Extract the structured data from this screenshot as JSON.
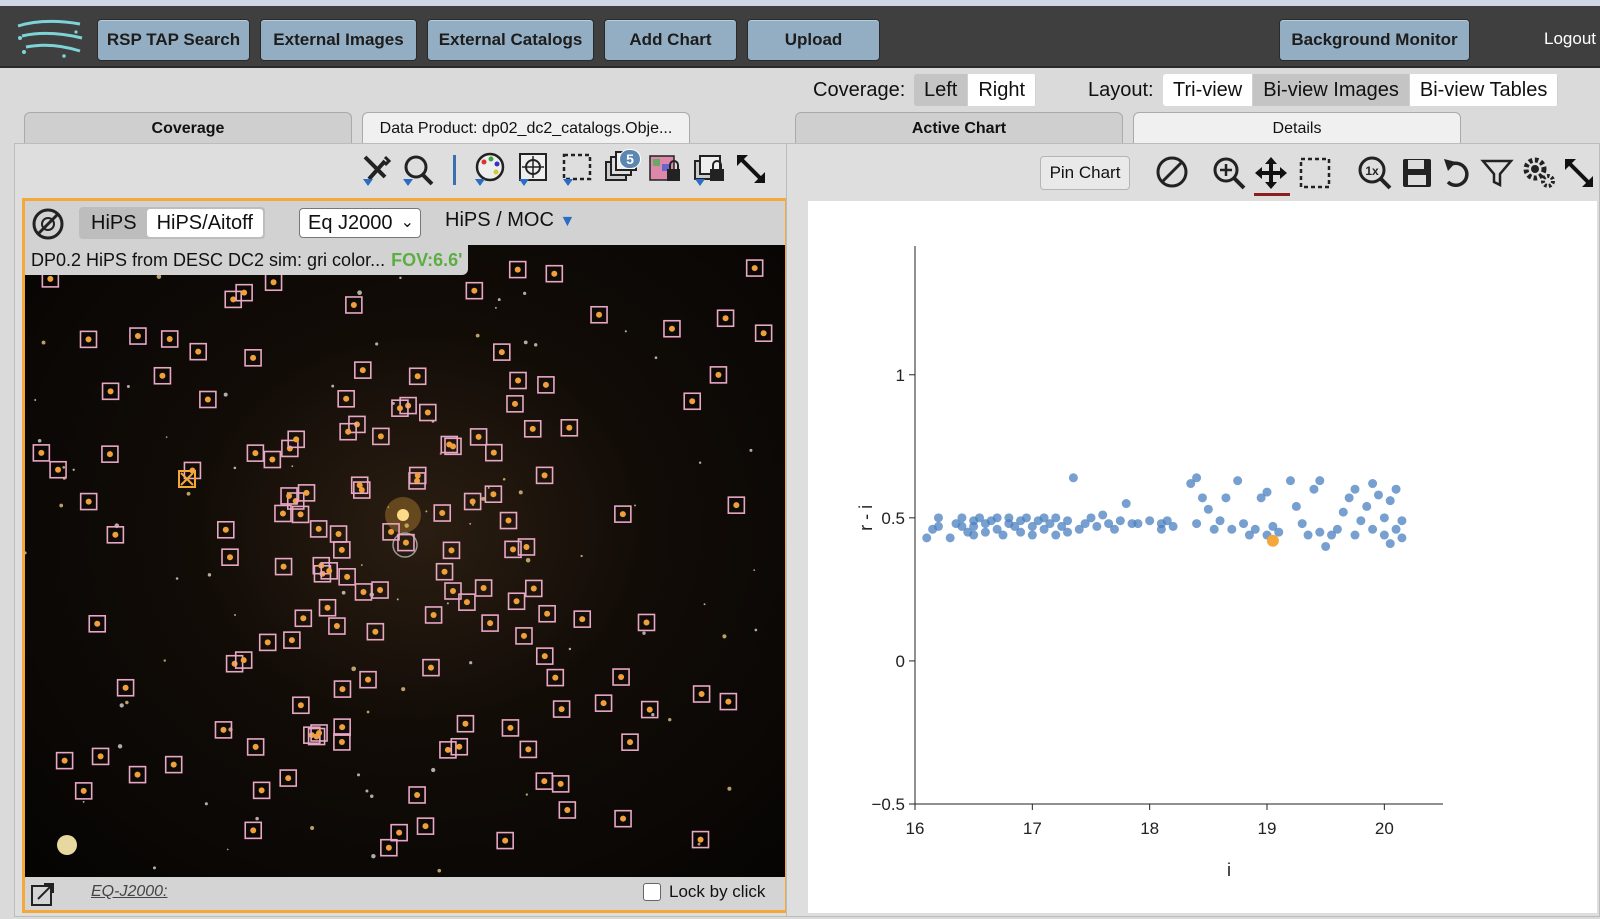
{
  "header": {
    "buttons": [
      "RSP TAP Search",
      "External Images",
      "External Catalogs",
      "Add Chart",
      "Upload"
    ],
    "background_monitor": "Background Monitor",
    "logout": "Logout"
  },
  "coverage_control": {
    "label": "Coverage:",
    "options": [
      "Left",
      "Right"
    ],
    "selected": "Left"
  },
  "layout_control": {
    "label": "Layout:",
    "options": [
      "Tri-view",
      "Bi-view Images",
      "Bi-view Tables"
    ],
    "selected": "Bi-view Images"
  },
  "left_panel": {
    "tabs": [
      "Coverage",
      "Data Product: dp02_dc2_catalogs.Obje..."
    ],
    "active_tab": "Coverage",
    "toolbar_badge": "5",
    "viewer": {
      "hips_options": [
        "HiPS",
        "HiPS/Aitoff"
      ],
      "selected_hips": "HiPS/Aitoff",
      "coordsys": "Eq J2000",
      "hips_moc_label": "HiPS / MOC",
      "image_title": "DP0.2 HiPS from DESC DC2 sim: gri color...",
      "fov": "FOV:6.6'",
      "footer_coord": "EQ-J2000:",
      "lock_label": "Lock by click"
    }
  },
  "right_panel": {
    "tabs": [
      "Active Chart",
      "Details"
    ],
    "active_tab": "Active Chart",
    "pin_chart": "Pin Chart"
  },
  "chart_data": {
    "type": "scatter",
    "xlabel": "i",
    "ylabel": "r - i",
    "xlim": [
      16,
      20.5
    ],
    "ylim": [
      -0.5,
      1.45
    ],
    "xticks": [
      "16",
      "17",
      "18",
      "19",
      "20"
    ],
    "yticks": [
      "−0.5",
      "0",
      "0.5",
      "1"
    ],
    "grid": false,
    "colors": {
      "points": "#4a7fbf",
      "highlight": "#f5a83a"
    },
    "series": [
      {
        "values": [
          [
            16.1,
            0.43
          ],
          [
            16.15,
            0.46
          ],
          [
            16.2,
            0.47
          ],
          [
            16.2,
            0.5
          ],
          [
            16.3,
            0.43
          ],
          [
            16.35,
            0.48
          ],
          [
            16.4,
            0.47
          ],
          [
            16.4,
            0.5
          ],
          [
            16.45,
            0.45
          ],
          [
            16.5,
            0.44
          ],
          [
            16.5,
            0.47
          ],
          [
            16.5,
            0.49
          ],
          [
            16.55,
            0.5
          ],
          [
            16.6,
            0.45
          ],
          [
            16.6,
            0.48
          ],
          [
            16.65,
            0.49
          ],
          [
            16.7,
            0.46
          ],
          [
            16.7,
            0.5
          ],
          [
            16.75,
            0.44
          ],
          [
            16.8,
            0.48
          ],
          [
            16.8,
            0.5
          ],
          [
            16.85,
            0.47
          ],
          [
            16.9,
            0.49
          ],
          [
            16.9,
            0.45
          ],
          [
            16.95,
            0.5
          ],
          [
            17.0,
            0.47
          ],
          [
            17.0,
            0.44
          ],
          [
            17.05,
            0.49
          ],
          [
            17.1,
            0.46
          ],
          [
            17.1,
            0.5
          ],
          [
            17.15,
            0.48
          ],
          [
            17.2,
            0.44
          ],
          [
            17.2,
            0.5
          ],
          [
            17.25,
            0.47
          ],
          [
            17.3,
            0.45
          ],
          [
            17.3,
            0.49
          ],
          [
            17.35,
            0.64
          ],
          [
            17.4,
            0.46
          ],
          [
            17.45,
            0.48
          ],
          [
            17.5,
            0.5
          ],
          [
            17.55,
            0.47
          ],
          [
            17.6,
            0.51
          ],
          [
            17.65,
            0.48
          ],
          [
            17.7,
            0.46
          ],
          [
            17.75,
            0.49
          ],
          [
            17.8,
            0.55
          ],
          [
            17.85,
            0.48
          ],
          [
            17.9,
            0.48
          ],
          [
            18.0,
            0.49
          ],
          [
            18.1,
            0.48
          ],
          [
            18.1,
            0.46
          ],
          [
            18.15,
            0.49
          ],
          [
            18.2,
            0.47
          ],
          [
            18.35,
            0.62
          ],
          [
            18.4,
            0.64
          ],
          [
            18.4,
            0.48
          ],
          [
            18.45,
            0.57
          ],
          [
            18.5,
            0.53
          ],
          [
            18.55,
            0.46
          ],
          [
            18.6,
            0.49
          ],
          [
            18.65,
            0.57
          ],
          [
            18.7,
            0.46
          ],
          [
            18.75,
            0.63
          ],
          [
            18.8,
            0.48
          ],
          [
            18.85,
            0.44
          ],
          [
            18.9,
            0.46
          ],
          [
            18.95,
            0.57
          ],
          [
            19.0,
            0.44
          ],
          [
            19.0,
            0.59
          ],
          [
            19.05,
            0.47
          ],
          [
            19.1,
            0.45
          ],
          [
            19.2,
            0.63
          ],
          [
            19.25,
            0.54
          ],
          [
            19.3,
            0.48
          ],
          [
            19.35,
            0.44
          ],
          [
            19.4,
            0.6
          ],
          [
            19.45,
            0.63
          ],
          [
            19.45,
            0.45
          ],
          [
            19.5,
            0.4
          ],
          [
            19.55,
            0.44
          ],
          [
            19.6,
            0.46
          ],
          [
            19.65,
            0.52
          ],
          [
            19.7,
            0.57
          ],
          [
            19.75,
            0.6
          ],
          [
            19.75,
            0.44
          ],
          [
            19.8,
            0.49
          ],
          [
            19.85,
            0.54
          ],
          [
            19.9,
            0.62
          ],
          [
            19.9,
            0.46
          ],
          [
            19.95,
            0.58
          ],
          [
            20.0,
            0.5
          ],
          [
            20.0,
            0.44
          ],
          [
            20.05,
            0.56
          ],
          [
            20.05,
            0.41
          ],
          [
            20.1,
            0.6
          ],
          [
            20.1,
            0.46
          ],
          [
            20.15,
            0.49
          ],
          [
            20.15,
            0.43
          ]
        ]
      }
    ],
    "highlight_point": [
      19.05,
      0.42
    ]
  }
}
